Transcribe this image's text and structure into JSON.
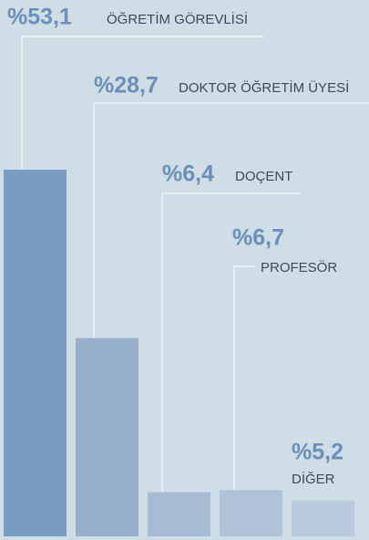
{
  "chart_data": {
    "type": "bar",
    "categories": [
      "ÖĞRETİM GÖREVLİSİ",
      "DOKTOR ÖĞRETİM ÜYESİ",
      "DOÇENT",
      "PROFESÖR",
      "DİĞER"
    ],
    "values": [
      53.1,
      28.7,
      6.4,
      6.7,
      5.2
    ],
    "value_labels": [
      "%53,1",
      "%28,7",
      "%6,4",
      "%6,7",
      "%5,2"
    ],
    "colors": [
      "#7a9cc1",
      "#98afcb",
      "#a7bbd3",
      "#b0c2d8",
      "#bccadd"
    ]
  }
}
